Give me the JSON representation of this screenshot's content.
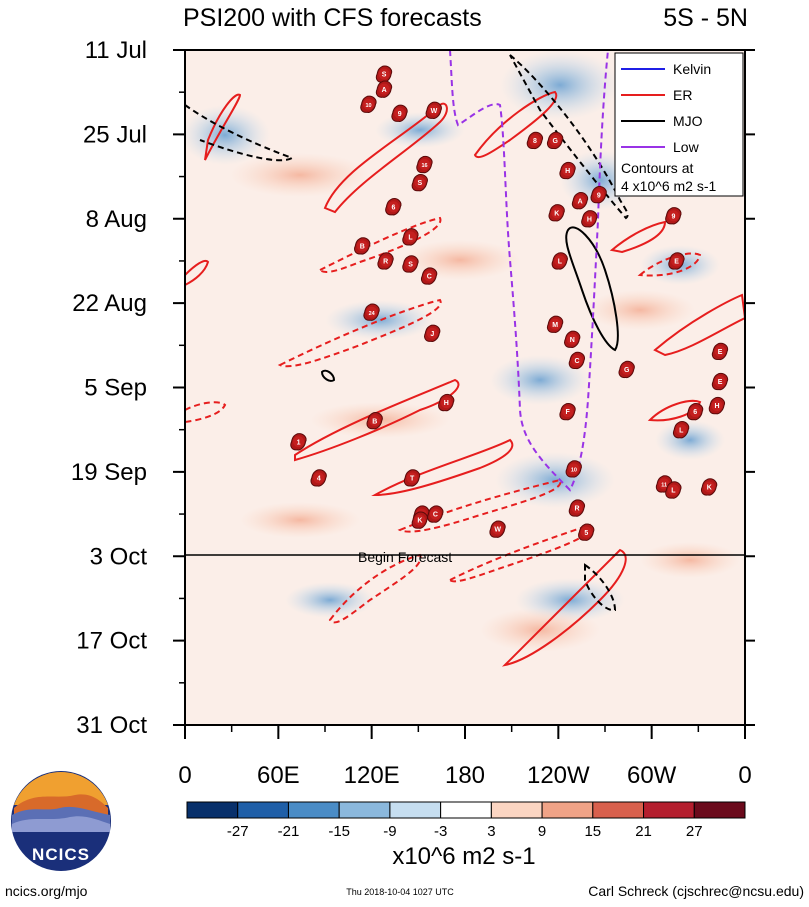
{
  "chart_data": {
    "type": "heatmap",
    "title": "PSI200 with CFS forecasts",
    "region": "5S - 5N",
    "y_ticks": [
      "11 Jul",
      "25 Jul",
      "8 Aug",
      "22 Aug",
      "5 Sep",
      "19 Sep",
      "3 Oct",
      "17 Oct",
      "31 Oct"
    ],
    "y_range_days": [
      0,
      112
    ],
    "x_ticks": [
      "0",
      "60E",
      "120E",
      "180",
      "120W",
      "60W",
      "0"
    ],
    "x_range_deg": [
      0,
      360
    ],
    "forecast_label": "Begin Forecast",
    "forecast_day": 84,
    "legend": [
      {
        "label": "Kelvin",
        "color": "#1f1fe6"
      },
      {
        "label": "ER",
        "color": "#e61e1e"
      },
      {
        "label": "MJO",
        "color": "#000000"
      },
      {
        "label": "Low",
        "color": "#9933e6"
      }
    ],
    "contour_note_1": "Contours at",
    "contour_note_2": "4 x10^6 m2 s-1",
    "colorbar": {
      "ticks": [
        "-27",
        "-21",
        "-15",
        "-9",
        "-3",
        "3",
        "9",
        "15",
        "21",
        "27"
      ],
      "colors": [
        "#08306b",
        "#1f5fa8",
        "#4a8cc6",
        "#8bb8dd",
        "#c6def0",
        "#ffffff",
        "#fbd5c2",
        "#f0a387",
        "#d8604d",
        "#b41e2e",
        "#6b0a1c"
      ],
      "units": "x10^6 m2 s-1"
    },
    "storms": [
      {
        "label": "S",
        "lon": 128,
        "day": 4
      },
      {
        "label": "A",
        "lon": 128,
        "day": 6.5
      },
      {
        "label": "10",
        "lon": 118,
        "day": 9
      },
      {
        "label": "9",
        "lon": 138,
        "day": 10.5
      },
      {
        "label": "W",
        "lon": 160,
        "day": 10
      },
      {
        "label": "8",
        "lon": 225,
        "day": 15
      },
      {
        "label": "G",
        "lon": 238,
        "day": 15
      },
      {
        "label": "H",
        "lon": 246,
        "day": 20
      },
      {
        "label": "16",
        "lon": 154,
        "day": 19
      },
      {
        "label": "S",
        "lon": 151,
        "day": 22
      },
      {
        "label": "6",
        "lon": 134,
        "day": 26
      },
      {
        "label": "A",
        "lon": 254,
        "day": 25
      },
      {
        "label": "9",
        "lon": 266,
        "day": 24
      },
      {
        "label": "K",
        "lon": 239,
        "day": 27
      },
      {
        "label": "H",
        "lon": 260,
        "day": 28
      },
      {
        "label": "9",
        "lon": 314,
        "day": 27.5
      },
      {
        "label": "L",
        "lon": 145,
        "day": 31
      },
      {
        "label": "B",
        "lon": 114,
        "day": 32.5
      },
      {
        "label": "R",
        "lon": 129,
        "day": 35
      },
      {
        "label": "S",
        "lon": 145,
        "day": 35.5
      },
      {
        "label": "C",
        "lon": 157,
        "day": 37.5
      },
      {
        "label": "L",
        "lon": 241,
        "day": 35
      },
      {
        "label": "E",
        "lon": 316,
        "day": 35
      },
      {
        "label": "24",
        "lon": 120,
        "day": 43.5
      },
      {
        "label": "J",
        "lon": 159,
        "day": 47
      },
      {
        "label": "M",
        "lon": 238,
        "day": 45.5
      },
      {
        "label": "N",
        "lon": 249,
        "day": 48
      },
      {
        "label": "C",
        "lon": 252,
        "day": 51.5
      },
      {
        "label": "G",
        "lon": 284,
        "day": 53
      },
      {
        "label": "E",
        "lon": 344,
        "day": 50
      },
      {
        "label": "H",
        "lon": 168,
        "day": 58.5
      },
      {
        "label": "E",
        "lon": 344,
        "day": 55
      },
      {
        "label": "B",
        "lon": 122,
        "day": 61.5
      },
      {
        "label": "F",
        "lon": 246,
        "day": 60
      },
      {
        "label": "H",
        "lon": 342,
        "day": 59
      },
      {
        "label": "6",
        "lon": 328,
        "day": 60
      },
      {
        "label": "1",
        "lon": 73,
        "day": 65
      },
      {
        "label": "L",
        "lon": 319,
        "day": 63
      },
      {
        "label": "10",
        "lon": 250,
        "day": 69.5
      },
      {
        "label": "4",
        "lon": 86,
        "day": 71
      },
      {
        "label": "T",
        "lon": 146,
        "day": 71
      },
      {
        "label": "11",
        "lon": 308,
        "day": 72
      },
      {
        "label": "L",
        "lon": 314,
        "day": 73
      },
      {
        "label": "K",
        "lon": 337,
        "day": 72.5
      },
      {
        "label": "R",
        "lon": 252,
        "day": 76
      },
      {
        "label": "20",
        "lon": 152,
        "day": 77
      },
      {
        "label": "K",
        "lon": 151,
        "day": 78
      },
      {
        "label": "C",
        "lon": 161,
        "day": 77
      },
      {
        "label": "W",
        "lon": 201,
        "day": 79.5
      },
      {
        "label": "5",
        "lon": 258,
        "day": 80
      }
    ]
  },
  "footer": {
    "logo_text": "NCICS",
    "site": "ncics.org/mjo",
    "timestamp": "Thu 2018-10-04 1027 UTC",
    "author": "Carl Schreck (cjschrec@ncsu.edu)"
  }
}
